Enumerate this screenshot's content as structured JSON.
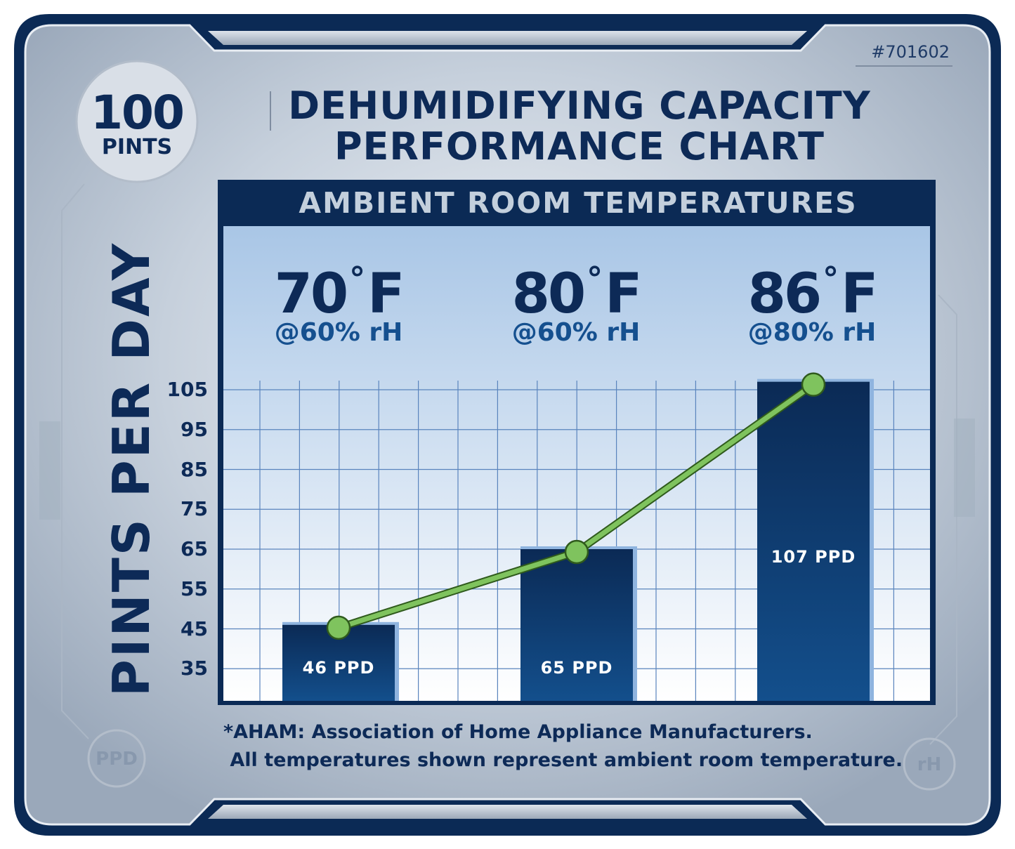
{
  "product_code": "#701602",
  "badge": {
    "number": "100",
    "unit": "PINTS"
  },
  "title": {
    "line1": "DEHUMIDIFYING CAPACITY",
    "line2": "PERFORMANCE CHART"
  },
  "corner_labels": {
    "left": "PPD",
    "right": "rH"
  },
  "footnote": {
    "line1": "*AHAM: Association of Home Appliance Manufacturers.",
    "line2": " All temperatures shown represent ambient room temperature."
  },
  "colors": {
    "frame": "#0b2a55",
    "bar_top": "#0b2a55",
    "bar_bottom": "#134f8c",
    "line": "#7fc35e",
    "plot_top": "#a9c6e6",
    "plot_bottom": "#ffffff",
    "grid": "#5a84bd"
  },
  "chart_data": {
    "type": "bar",
    "header": "AMBIENT ROOM TEMPERATURES",
    "ylabel": "PINTS PER DAY",
    "yticks": [
      35,
      45,
      55,
      65,
      75,
      85,
      95,
      105
    ],
    "ylim": [
      28,
      107
    ],
    "grid": true,
    "categories": [
      {
        "temp": "70",
        "unit": "F",
        "rh": "@60% rH"
      },
      {
        "temp": "80",
        "unit": "F",
        "rh": "@60% rH"
      },
      {
        "temp": "86",
        "unit": "F",
        "rh": "@80% rH"
      }
    ],
    "values": [
      46,
      65,
      107
    ],
    "value_labels": [
      "46 PPD",
      "65 PPD",
      "107 PPD"
    ],
    "line_overlay": true
  }
}
